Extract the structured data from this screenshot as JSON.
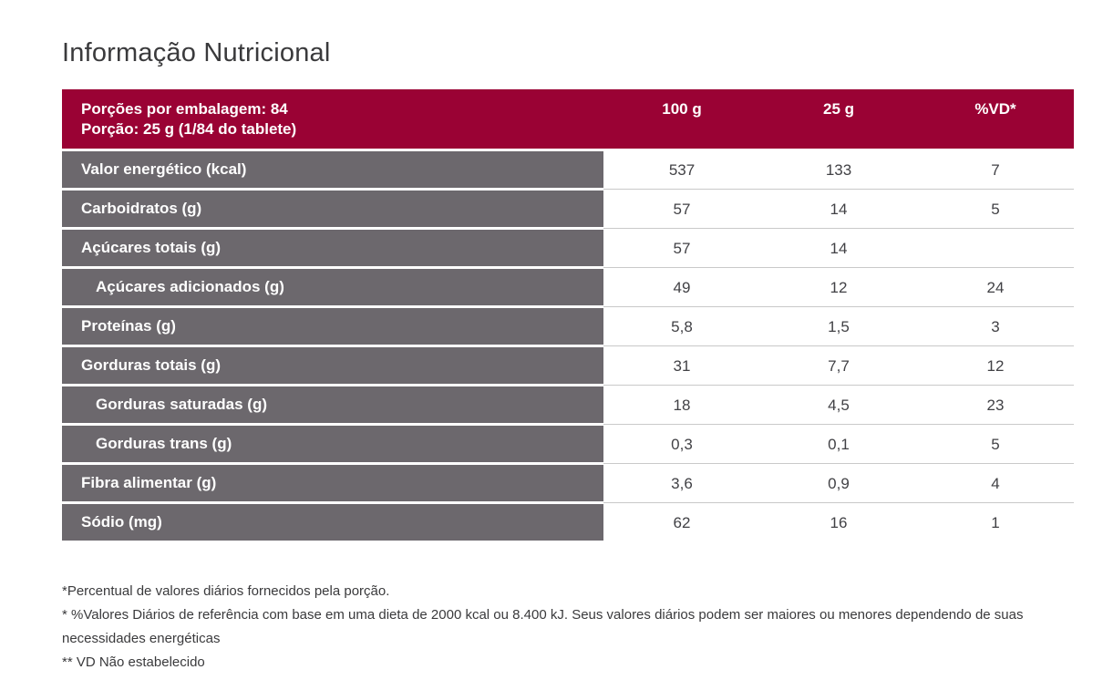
{
  "page": {
    "title": "Informação Nutricional"
  },
  "colors": {
    "header_background": "#9a0234",
    "row_label_background": "#6c686d",
    "header_text": "#ffffff",
    "value_text": "#414145",
    "separator_line": "#c9c9c9"
  },
  "table": {
    "header": {
      "servings_per_package": "Porções por embalagem: 84",
      "serving_size": "Porção: 25 g (1/84 do tablete)",
      "columns": [
        "100 g",
        "25 g",
        "%VD*"
      ]
    },
    "rows": [
      {
        "label": "Valor energético (kcal)",
        "indent": false,
        "per_100g": "537",
        "per_25g": "133",
        "vd_percent": "7"
      },
      {
        "label": "Carboidratos (g)",
        "indent": false,
        "per_100g": "57",
        "per_25g": "14",
        "vd_percent": "5"
      },
      {
        "label": "Açúcares totais (g)",
        "indent": false,
        "per_100g": "57",
        "per_25g": "14",
        "vd_percent": ""
      },
      {
        "label": "Açúcares adicionados (g)",
        "indent": true,
        "per_100g": "49",
        "per_25g": "12",
        "vd_percent": "24"
      },
      {
        "label": "Proteínas (g)",
        "indent": false,
        "per_100g": "5,8",
        "per_25g": "1,5",
        "vd_percent": "3"
      },
      {
        "label": "Gorduras totais (g)",
        "indent": false,
        "per_100g": "31",
        "per_25g": "7,7",
        "vd_percent": "12"
      },
      {
        "label": "Gorduras saturadas (g)",
        "indent": true,
        "per_100g": "18",
        "per_25g": "4,5",
        "vd_percent": "23"
      },
      {
        "label": "Gorduras trans (g)",
        "indent": true,
        "per_100g": "0,3",
        "per_25g": "0,1",
        "vd_percent": "5"
      },
      {
        "label": "Fibra alimentar (g)",
        "indent": false,
        "per_100g": "3,6",
        "per_25g": "0,9",
        "vd_percent": "4"
      },
      {
        "label": "Sódio (mg)",
        "indent": false,
        "per_100g": "62",
        "per_25g": "16",
        "vd_percent": "1"
      }
    ]
  },
  "footnotes": [
    "*Percentual de valores diários fornecidos pela porção.",
    "* %Valores Diários de referência com base em uma dieta de 2000 kcal ou 8.400 kJ. Seus valores diários podem ser maiores ou menores dependendo de suas necessidades energéticas",
    "** VD Não estabelecido"
  ]
}
